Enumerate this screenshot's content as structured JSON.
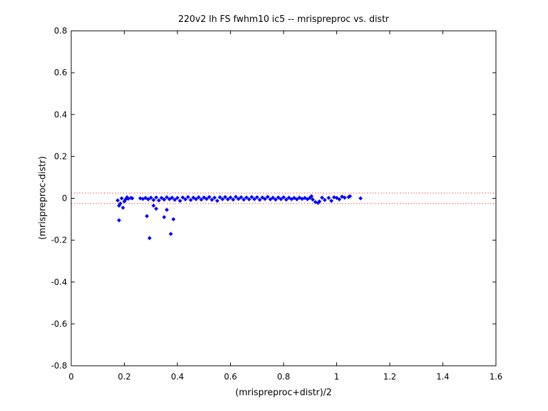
{
  "chart_data": {
    "type": "scatter",
    "title": "220v2 lh FS fwhm10 ic5 -- mrispreproc vs. distr",
    "xlabel": "(mrispreproc+distr)/2",
    "ylabel": "(mrispreproc-distr)",
    "xlim": [
      0,
      1.6
    ],
    "ylim": [
      -0.8,
      0.8
    ],
    "x_ticks": [
      0,
      0.2,
      0.4,
      0.6,
      0.8,
      1,
      1.2,
      1.4,
      1.6
    ],
    "x_tick_labels": [
      "0",
      "0.2",
      "0.4",
      "0.6",
      "0.8",
      "1",
      "1.2",
      "1.4",
      "1.6"
    ],
    "y_ticks": [
      -0.8,
      -0.6,
      -0.4,
      -0.2,
      0,
      0.2,
      0.4,
      0.6,
      0.8
    ],
    "y_tick_labels": [
      "-0.8",
      "-0.6",
      "-0.4",
      "-0.2",
      "0",
      "0.2",
      "0.4",
      "0.6",
      "0.8"
    ],
    "grid": false,
    "legend": "none",
    "reference_lines": [
      {
        "y": 0.025,
        "style": "dotted",
        "color": "#ff0000"
      },
      {
        "y": -0.025,
        "style": "dotted",
        "color": "#ff0000"
      }
    ],
    "series": [
      {
        "color": "#0000ff",
        "marker": "diamond",
        "points": [
          [
            0.18,
            -0.105
          ],
          [
            0.295,
            -0.19
          ],
          [
            0.375,
            -0.17
          ],
          [
            0.385,
            -0.1
          ],
          [
            0.285,
            -0.085
          ],
          [
            0.35,
            -0.09
          ],
          [
            0.32,
            -0.05
          ],
          [
            0.31,
            -0.035
          ],
          [
            0.36,
            -0.055
          ],
          [
            0.18,
            -0.035
          ],
          [
            0.195,
            -0.045
          ],
          [
            0.185,
            -0.025
          ],
          [
            0.2,
            -0.015
          ],
          [
            0.175,
            -0.01
          ],
          [
            0.19,
            0.0
          ],
          [
            0.21,
            0.005
          ],
          [
            0.225,
            0.002
          ],
          [
            0.205,
            -0.005
          ],
          [
            0.215,
            -0.002
          ],
          [
            0.23,
            0.0
          ],
          [
            0.26,
            0.0
          ],
          [
            0.27,
            -0.003
          ],
          [
            0.28,
            0.002
          ],
          [
            0.29,
            -0.005
          ],
          [
            0.3,
            0.003
          ],
          [
            0.31,
            -0.008
          ],
          [
            0.32,
            0.004
          ],
          [
            0.33,
            -0.01
          ],
          [
            0.34,
            0.002
          ],
          [
            0.35,
            -0.006
          ],
          [
            0.36,
            0.005
          ],
          [
            0.37,
            -0.004
          ],
          [
            0.38,
            0.003
          ],
          [
            0.39,
            -0.007
          ],
          [
            0.4,
            0.002
          ],
          [
            0.41,
            -0.012
          ],
          [
            0.42,
            0.004
          ],
          [
            0.43,
            -0.005
          ],
          [
            0.44,
            0.006
          ],
          [
            0.45,
            -0.008
          ],
          [
            0.46,
            0.003
          ],
          [
            0.47,
            -0.004
          ],
          [
            0.48,
            0.005
          ],
          [
            0.49,
            -0.006
          ],
          [
            0.5,
            0.004
          ],
          [
            0.51,
            -0.003
          ],
          [
            0.52,
            0.006
          ],
          [
            0.53,
            -0.007
          ],
          [
            0.54,
            0.003
          ],
          [
            0.55,
            -0.012
          ],
          [
            0.56,
            0.005
          ],
          [
            0.57,
            -0.004
          ],
          [
            0.58,
            0.006
          ],
          [
            0.59,
            -0.005
          ],
          [
            0.6,
            0.004
          ],
          [
            0.61,
            -0.006
          ],
          [
            0.62,
            0.007
          ],
          [
            0.63,
            -0.003
          ],
          [
            0.64,
            0.005
          ],
          [
            0.65,
            -0.006
          ],
          [
            0.66,
            0.004
          ],
          [
            0.67,
            -0.005
          ],
          [
            0.68,
            0.006
          ],
          [
            0.69,
            -0.004
          ],
          [
            0.7,
            0.005
          ],
          [
            0.71,
            -0.007
          ],
          [
            0.72,
            0.004
          ],
          [
            0.73,
            -0.003
          ],
          [
            0.74,
            0.007
          ],
          [
            0.75,
            -0.005
          ],
          [
            0.76,
            0.003
          ],
          [
            0.77,
            -0.006
          ],
          [
            0.78,
            0.004
          ],
          [
            0.79,
            -0.004
          ],
          [
            0.8,
            0.005
          ],
          [
            0.81,
            -0.006
          ],
          [
            0.82,
            0.003
          ],
          [
            0.83,
            -0.004
          ],
          [
            0.84,
            0.002
          ],
          [
            0.85,
            -0.005
          ],
          [
            0.86,
            0.003
          ],
          [
            0.87,
            -0.003
          ],
          [
            0.88,
            0.002
          ],
          [
            0.89,
            -0.004
          ],
          [
            0.9,
            0.003
          ],
          [
            0.905,
            0.01
          ],
          [
            0.91,
            -0.006
          ],
          [
            0.92,
            -0.018
          ],
          [
            0.93,
            -0.022
          ],
          [
            0.935,
            -0.015
          ],
          [
            0.945,
            0.003
          ],
          [
            0.955,
            -0.008
          ],
          [
            0.97,
            0.002
          ],
          [
            0.98,
            -0.012
          ],
          [
            0.99,
            0.005
          ],
          [
            1.0,
            0.002
          ],
          [
            1.01,
            -0.005
          ],
          [
            1.02,
            0.008
          ],
          [
            1.03,
            0.003
          ],
          [
            1.05,
            0.01
          ],
          [
            1.045,
            0.006
          ],
          [
            1.09,
            0.0
          ]
        ]
      }
    ]
  }
}
